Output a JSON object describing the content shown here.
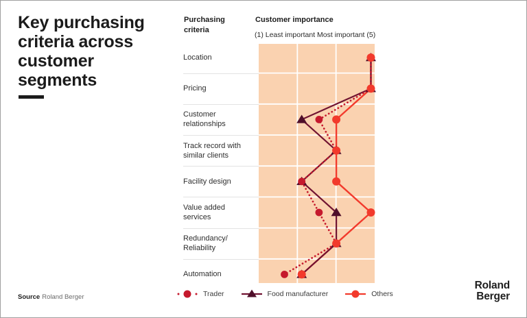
{
  "title": {
    "text": "Key purchasing criteria across customer segments"
  },
  "headers": {
    "criteria": "Purchasing criteria",
    "importance": "Customer importance",
    "scale": "(1) Least important Most important (5)"
  },
  "criteria": [
    "Location",
    "Pricing",
    "Customer relationships",
    "Track record with similar clients",
    "Facility design",
    "Value added services",
    "Redundancy/ Reliability",
    "Automation"
  ],
  "source": {
    "label": "Source",
    "text": "Roland Berger"
  },
  "logo": {
    "line1": "Roland",
    "line2": "Berger"
  },
  "colors": {
    "plot_bg": "#fad2b0",
    "grid": "#ffffff",
    "separator": "#e3e3e3",
    "text_dark": "#1b1b1b"
  },
  "chart_data": {
    "type": "line",
    "variant": "profile-chart (importance per criterion, plotted horizontally 1-5)",
    "categories": [
      "Location",
      "Pricing",
      "Customer relationships",
      "Track record with similar clients",
      "Facility design",
      "Value added services",
      "Redundancy/ Reliability",
      "Automation"
    ],
    "x_scale": {
      "min": 1,
      "max": 5,
      "min_label": "(1) Least important",
      "max_label": "Most important (5)"
    },
    "grid": "on",
    "legend_position": "bottom",
    "series": [
      {
        "name": "Trader",
        "color": "#c5192d",
        "marker": "circle",
        "line_style": "dotted",
        "values": [
          5,
          5,
          3.5,
          4,
          3,
          3.5,
          4,
          2.5
        ]
      },
      {
        "name": "Food manufacturer",
        "color": "#701331",
        "marker_color": "#4f0f2a",
        "marker": "triangle",
        "line_style": "solid",
        "values": [
          5,
          5,
          3,
          4,
          3,
          4,
          4,
          3
        ]
      },
      {
        "name": "Others",
        "color": "#f23a2c",
        "marker": "circle",
        "line_style": "solid",
        "values": [
          5,
          5,
          4,
          4,
          4,
          5,
          4,
          3
        ]
      }
    ]
  }
}
